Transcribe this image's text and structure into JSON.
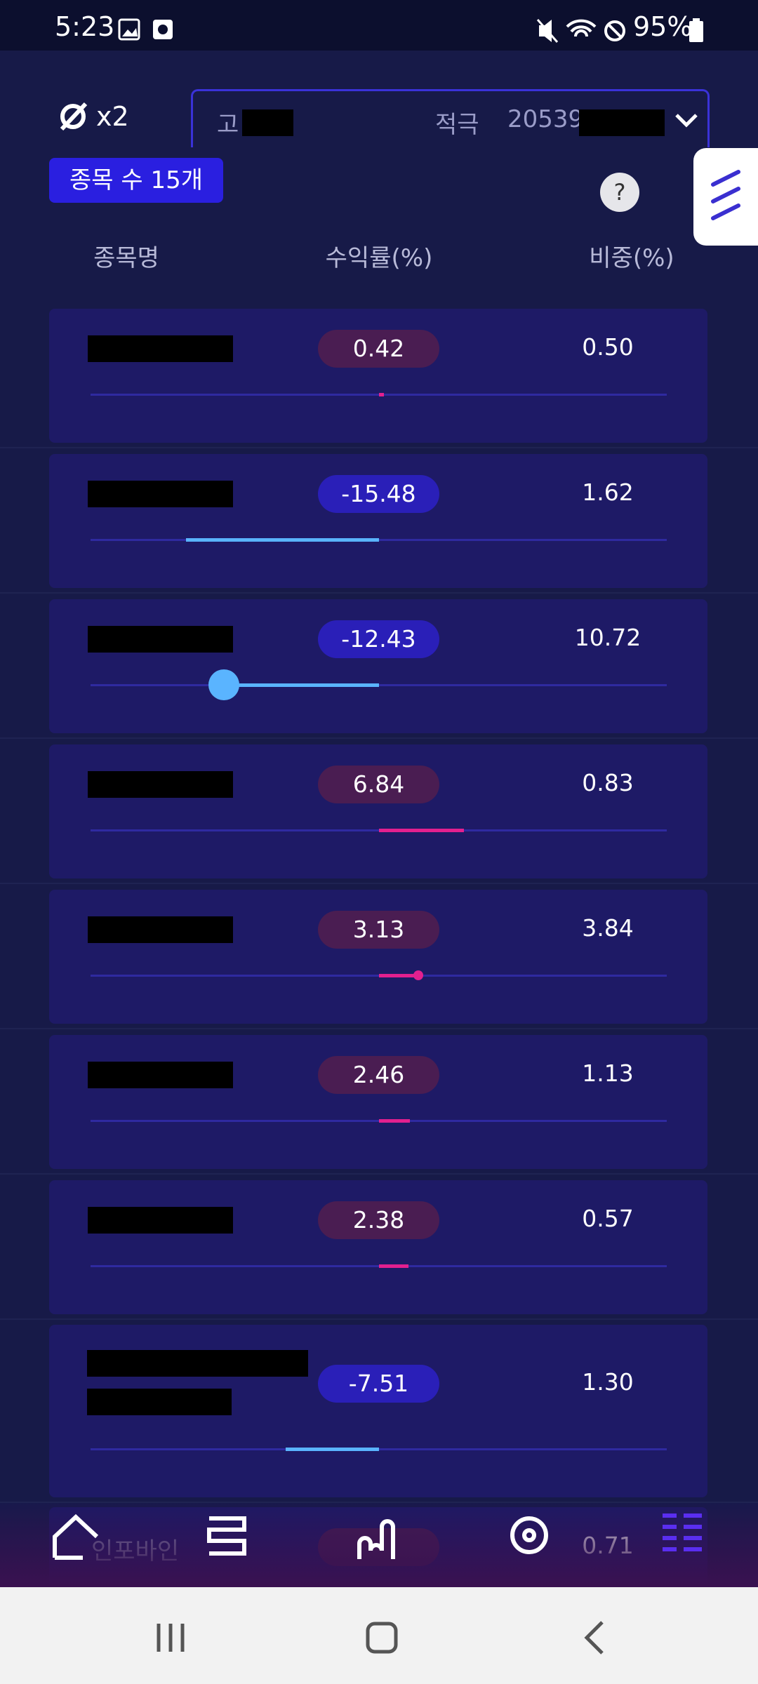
{
  "status_bar": {
    "time": "5:23",
    "battery": "95%"
  },
  "header": {
    "zoom": "x2",
    "account": {
      "name": "고",
      "type": "적극",
      "number": "20539"
    }
  },
  "badge": "종목 수 15개",
  "help": "?",
  "table": {
    "columns": [
      "종목명",
      "수익률(%)",
      "비중(%)"
    ],
    "rows": [
      {
        "return": 0.42,
        "weight": "0.50"
      },
      {
        "return": -15.48,
        "weight": "1.62"
      },
      {
        "return": -12.43,
        "weight": "10.72"
      },
      {
        "return": 6.84,
        "weight": "0.83"
      },
      {
        "return": 3.13,
        "weight": "3.84"
      },
      {
        "return": 2.46,
        "weight": "1.13"
      },
      {
        "return": 2.38,
        "weight": "0.57"
      },
      {
        "return": -7.51,
        "weight": "1.30"
      },
      {
        "name": "인포바인",
        "weight": "0.71"
      }
    ]
  }
}
